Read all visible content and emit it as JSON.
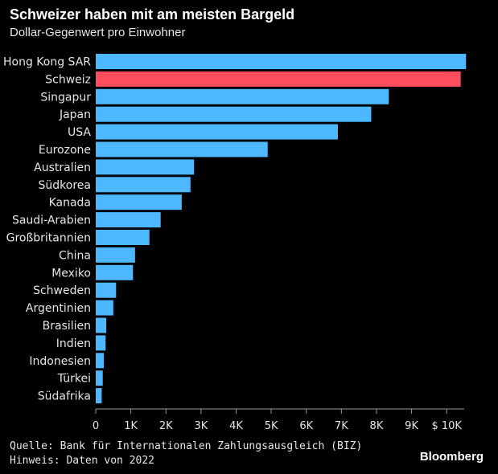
{
  "header": {
    "title": "Schweizer haben mit am meisten Bargeld",
    "subtitle": "Dollar-Gegenwert pro Einwohner"
  },
  "footer": {
    "source": "Quelle: Bank für Internationalen Zahlungsausgleich (BIZ)",
    "note": "Hinweis: Daten von 2022",
    "brand": "Bloomberg"
  },
  "colors": {
    "bar": "#4db8ff",
    "highlight": "#ff4f5e",
    "background": "#000000",
    "grid": "#9a9a9a"
  },
  "chart_data": {
    "type": "bar",
    "orientation": "horizontal",
    "categories": [
      "Hong Kong SAR",
      "Schweiz",
      "Singapur",
      "Japan",
      "USA",
      "Eurozone",
      "Australien",
      "Südkorea",
      "Kanada",
      "Saudi-Arabien",
      "Großbritannien",
      "China",
      "Mexiko",
      "Schweden",
      "Argentinien",
      "Brasilien",
      "Indien",
      "Indonesien",
      "Türkei",
      "Südafrika"
    ],
    "values": [
      10550,
      10400,
      8350,
      7850,
      6900,
      4900,
      2800,
      2700,
      2450,
      1850,
      1530,
      1120,
      1060,
      580,
      500,
      300,
      280,
      230,
      200,
      170
    ],
    "highlight": "Schweiz",
    "xlim": [
      0,
      10500
    ],
    "xticks": [
      0,
      1000,
      2000,
      3000,
      4000,
      5000,
      6000,
      7000,
      8000,
      9000,
      10000
    ],
    "xtick_labels": [
      "0",
      "1K",
      "2K",
      "3K",
      "4K",
      "5K",
      "6K",
      "7K",
      "8K",
      "9K",
      "$ 10K"
    ],
    "grid": false
  }
}
